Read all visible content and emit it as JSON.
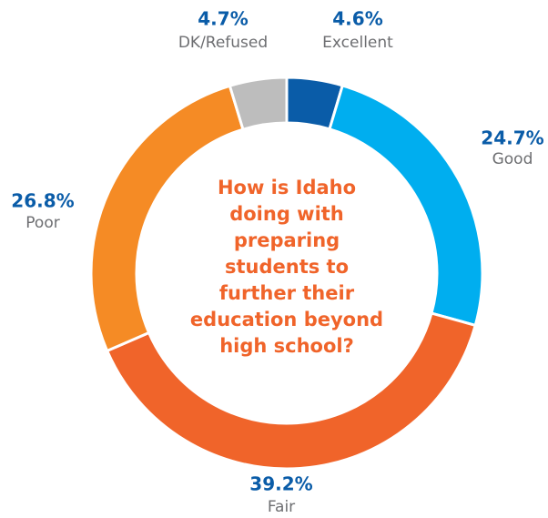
{
  "chart_data": {
    "type": "donut",
    "title": "How is Idaho doing with preparing students to further their education beyond high school?",
    "categories": [
      "Excellent",
      "Good",
      "Fair",
      "Poor",
      "DK/Refused"
    ],
    "values": [
      4.6,
      24.7,
      39.2,
      26.8,
      4.7
    ],
    "value_labels": [
      "4.6%",
      "24.7%",
      "39.2%",
      "26.8%",
      "4.7%"
    ],
    "colors": [
      "#0a5ca8",
      "#00aeef",
      "#f0642a",
      "#f58b25",
      "#bdbdbd"
    ]
  }
}
